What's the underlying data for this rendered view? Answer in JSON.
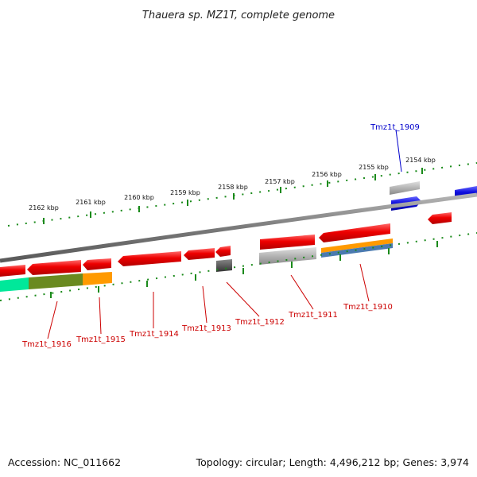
{
  "title": "Thauera sp. MZ1T, complete genome",
  "footer": {
    "accession": "Accession: NC_011662",
    "summary": "Topology: circular; Length: 4,496,212 bp; Genes: 3,974"
  },
  "colors": {
    "backbone": "#808080",
    "tick": "#1a8a1a",
    "gene_red": "#e00000",
    "gene_blue": "#1010e0",
    "gene_gray": "#b0b0b0",
    "label_red": "#cc0000",
    "label_blue": "#0000cc",
    "orange": "#ff9a00",
    "olive": "#6a8a20",
    "teal": "#00e89a",
    "steelblue": "#4a7ab0"
  },
  "scale_labels": [
    "2162 kbp",
    "2161 kbp",
    "2160 kbp",
    "2159 kbp",
    "2158 kbp",
    "2157 kbp",
    "2156 kbp",
    "2155 kbp",
    "2154 kbp"
  ],
  "gene_labels": [
    {
      "name": "Tmz1t_1909",
      "color": "blue"
    },
    {
      "name": "Tmz1t_1910",
      "color": "red"
    },
    {
      "name": "Tmz1t_1911",
      "color": "red"
    },
    {
      "name": "Tmz1t_1912",
      "color": "red"
    },
    {
      "name": "Tmz1t_1913",
      "color": "red"
    },
    {
      "name": "Tmz1t_1914",
      "color": "red"
    },
    {
      "name": "Tmz1t_1915",
      "color": "red"
    },
    {
      "name": "Tmz1t_1916",
      "color": "red"
    }
  ]
}
